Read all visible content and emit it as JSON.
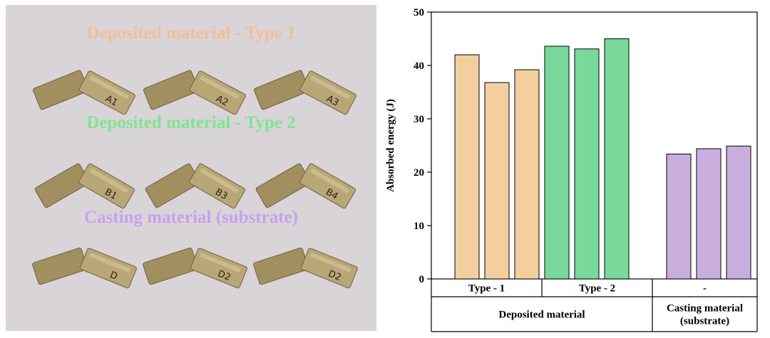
{
  "photo": {
    "labels": [
      {
        "text": "Deposited material - Type 1",
        "color": "#f3bf95"
      },
      {
        "text": "Deposited material - Type 2",
        "color": "#7ee58f"
      },
      {
        "text": "Casting material (substrate)",
        "color": "#cb9fec"
      }
    ],
    "specimen_marks": [
      [
        "A1",
        "A2",
        "A3"
      ],
      [
        "B1",
        "B3",
        "B4"
      ],
      [
        "D",
        "D2",
        "D2"
      ]
    ]
  },
  "chart_data": {
    "type": "bar",
    "ylabel": "Absorbed energy (J)",
    "ylim": [
      0,
      50
    ],
    "yticks": [
      0,
      10,
      20,
      30,
      40,
      50
    ],
    "series": [
      {
        "group": "Type - 1",
        "color": "#f3cfa0",
        "values": [
          42.0,
          36.8,
          39.2
        ]
      },
      {
        "group": "Type - 2",
        "color": "#78d99a",
        "values": [
          43.6,
          43.1,
          45.0
        ]
      },
      {
        "group": "-",
        "color": "#c9aedd",
        "values": [
          23.4,
          24.4,
          24.9
        ]
      }
    ],
    "categories_level1": [
      "Type - 1",
      "Type - 2",
      "-"
    ],
    "categories_level2": [
      "Deposited material",
      "Casting material (substrate)"
    ],
    "categories_level2_lines": [
      [
        "Deposited material"
      ],
      [
        "Casting material",
        "(substrate)"
      ]
    ],
    "grid": false,
    "legend": "none"
  }
}
